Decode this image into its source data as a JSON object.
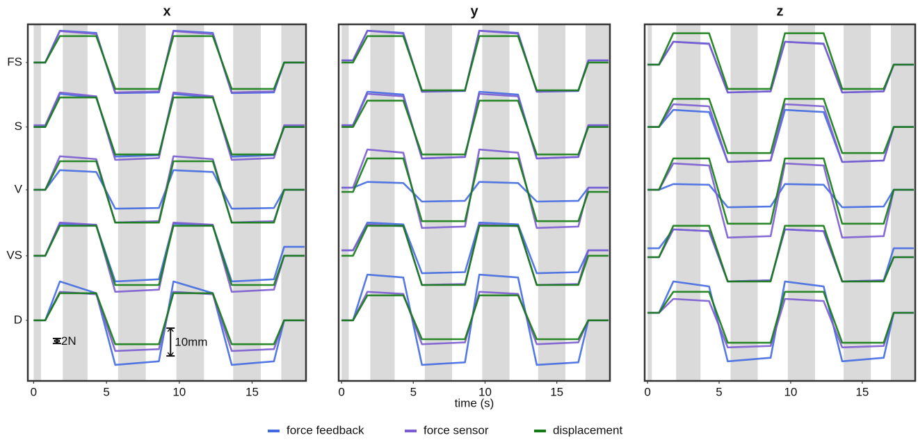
{
  "chart_data": [
    {
      "type": "line",
      "title": "x",
      "x": [
        0,
        0.8,
        1.8,
        4.3,
        5.6,
        8.6,
        9.6,
        12.3,
        13.6,
        16.5,
        17.2,
        18.6
      ],
      "xlim": [
        -0.4,
        18.7
      ],
      "xticks": [
        0,
        5,
        10,
        15
      ],
      "ylim": [
        0,
        100
      ],
      "yticks": [
        {
          "value": 89.3,
          "label": "FS"
        },
        {
          "value": 71.2,
          "label": "S"
        },
        {
          "value": 53.6,
          "label": "V"
        },
        {
          "value": 35.1,
          "label": "VS"
        },
        {
          "value": 17.0,
          "label": "D"
        }
      ],
      "shaded": [
        [
          0,
          0.5
        ],
        [
          2,
          3.7
        ],
        [
          5.8,
          7.7
        ],
        [
          9.8,
          11.7
        ],
        [
          13.7,
          15.6
        ],
        [
          17,
          18.7
        ]
      ],
      "annotations": [
        {
          "text": "2N",
          "x": 1.6,
          "y": [
            10.5,
            11.9
          ]
        },
        {
          "text": "10mm",
          "x": 9.4,
          "y": [
            7.0,
            14.8
          ]
        }
      ],
      "series": [
        {
          "name": "force feedback",
          "color": "#4169e1",
          "values": [
            [
              89.3,
              89.3,
              98.2,
              97.6,
              80.7,
              80.9,
              98.2,
              97.6,
              80.7,
              80.9,
              89.3,
              89.3
            ],
            [
              71.2,
              71.2,
              80.5,
              79.5,
              62.9,
              63.3,
              80.5,
              79.5,
              62.9,
              63.3,
              71.2,
              71.2
            ],
            [
              53.6,
              53.6,
              59.1,
              58.6,
              48.3,
              48.5,
              59.1,
              58.6,
              48.3,
              48.5,
              53.6,
              53.6
            ],
            [
              35.1,
              35.1,
              44.1,
              43.6,
              27.9,
              28.5,
              44.1,
              43.6,
              27.9,
              28.5,
              37.6,
              37.6
            ],
            [
              17.0,
              17.0,
              27.9,
              24.6,
              4.5,
              5.5,
              27.9,
              24.6,
              4.5,
              5.5,
              17.0,
              17.0
            ]
          ]
        },
        {
          "name": "force sensor",
          "color": "#7b5cd0",
          "values": [
            [
              89.3,
              89.3,
              98.1,
              97.3,
              80.9,
              81.2,
              98.1,
              97.3,
              80.9,
              81.2,
              89.3,
              89.3
            ],
            [
              71.7,
              71.7,
              80.9,
              79.8,
              62.0,
              62.5,
              80.9,
              79.8,
              62.0,
              62.5,
              71.7,
              71.7
            ],
            [
              53.6,
              53.6,
              63.0,
              62.2,
              44.4,
              44.8,
              63.0,
              62.2,
              44.4,
              44.8,
              53.6,
              53.6
            ],
            [
              35.1,
              35.1,
              44.4,
              43.8,
              25.0,
              25.6,
              44.4,
              43.8,
              25.0,
              25.6,
              35.1,
              35.1
            ],
            [
              17.0,
              17.0,
              25.0,
              24.3,
              8.4,
              8.9,
              25.0,
              24.3,
              8.4,
              8.9,
              17.0,
              17.0
            ]
          ]
        },
        {
          "name": "displacement",
          "color": "#137a13",
          "values": [
            [
              89.3,
              89.3,
              96.7,
              96.7,
              81.9,
              81.9,
              96.7,
              96.7,
              81.9,
              81.9,
              89.3,
              89.3
            ],
            [
              71.2,
              71.2,
              79.5,
              79.5,
              63.5,
              63.5,
              79.5,
              79.5,
              63.5,
              63.5,
              71.2,
              71.2
            ],
            [
              53.6,
              53.6,
              61.6,
              61.6,
              44.4,
              44.4,
              61.6,
              61.6,
              44.4,
              44.4,
              53.6,
              53.6
            ],
            [
              35.1,
              35.1,
              43.5,
              43.5,
              26.9,
              26.9,
              43.5,
              43.5,
              26.9,
              26.9,
              35.1,
              35.1
            ],
            [
              17.0,
              17.0,
              24.6,
              24.6,
              10.3,
              10.3,
              24.6,
              24.6,
              10.3,
              10.3,
              17.0,
              17.0
            ]
          ]
        }
      ]
    },
    {
      "type": "line",
      "title": "y",
      "xlabel": "time (s)",
      "x": [
        0,
        0.8,
        1.8,
        4.3,
        5.6,
        8.6,
        9.6,
        12.3,
        13.6,
        16.5,
        17.2,
        18.6
      ],
      "xlim": [
        -0.2,
        18.7
      ],
      "xticks": [
        0,
        5,
        10,
        15
      ],
      "ylim": [
        0,
        100
      ],
      "shaded": [
        [
          0,
          0.5
        ],
        [
          2,
          3.7
        ],
        [
          5.8,
          7.7
        ],
        [
          9.8,
          11.7
        ],
        [
          13.7,
          15.6
        ],
        [
          17,
          18.7
        ]
      ],
      "series": [
        {
          "name": "force feedback",
          "color": "#4169e1",
          "values": [
            [
              89.9,
              89.9,
              98.2,
              97.6,
              81.1,
              81.3,
              98.2,
              97.6,
              81.1,
              81.3,
              89.9,
              89.9
            ],
            [
              71.7,
              71.7,
              81.1,
              80.3,
              62.4,
              62.8,
              81.1,
              80.3,
              62.4,
              62.8,
              71.7,
              71.7
            ],
            [
              54.2,
              54.2,
              55.8,
              55.5,
              50.3,
              50.5,
              55.8,
              55.5,
              50.3,
              50.5,
              54.2,
              54.2
            ],
            [
              36.6,
              36.6,
              44.4,
              43.9,
              30.2,
              30.5,
              44.4,
              43.9,
              30.2,
              30.5,
              36.6,
              36.6
            ],
            [
              17.0,
              17.0,
              29.8,
              29.0,
              4.5,
              5.2,
              29.8,
              29.0,
              4.5,
              5.2,
              17.0,
              17.0
            ]
          ]
        },
        {
          "name": "force sensor",
          "color": "#7b5cd0",
          "values": [
            [
              89.9,
              89.9,
              98.2,
              97.4,
              81.1,
              81.4,
              98.2,
              97.4,
              81.1,
              81.4,
              89.9,
              89.9
            ],
            [
              71.7,
              71.7,
              80.5,
              79.8,
              62.4,
              62.8,
              80.5,
              79.8,
              62.4,
              62.8,
              71.7,
              71.7
            ],
            [
              54.2,
              54.2,
              64.9,
              64.0,
              42.9,
              43.3,
              64.9,
              64.0,
              42.9,
              43.3,
              54.2,
              54.2
            ],
            [
              36.6,
              36.6,
              43.9,
              43.4,
              26.9,
              27.2,
              43.9,
              43.4,
              26.9,
              27.2,
              36.6,
              36.6
            ],
            [
              17.0,
              17.0,
              25.0,
              24.4,
              10.3,
              10.8,
              25.0,
              24.4,
              10.3,
              10.8,
              17.0,
              17.0
            ]
          ]
        },
        {
          "name": "displacement",
          "color": "#137a13",
          "values": [
            [
              89.3,
              89.3,
              96.7,
              96.7,
              81.5,
              81.5,
              96.7,
              96.7,
              81.5,
              81.5,
              89.3,
              89.3
            ],
            [
              71.2,
              71.2,
              78.6,
              78.6,
              63.5,
              63.5,
              78.6,
              78.6,
              63.5,
              63.5,
              71.2,
              71.2
            ],
            [
              53.0,
              53.0,
              62.4,
              62.4,
              44.8,
              44.8,
              62.4,
              62.4,
              44.8,
              44.8,
              53.0,
              53.0
            ],
            [
              35.1,
              35.1,
              43.5,
              43.5,
              26.9,
              26.9,
              43.5,
              43.5,
              26.9,
              26.9,
              35.1,
              35.1
            ],
            [
              17.0,
              17.0,
              24.0,
              24.0,
              11.7,
              11.7,
              24.0,
              24.0,
              11.7,
              11.7,
              17.0,
              17.0
            ]
          ]
        }
      ]
    },
    {
      "type": "line",
      "title": "z",
      "x": [
        0,
        0.8,
        1.8,
        4.3,
        5.6,
        8.6,
        9.6,
        12.3,
        13.6,
        16.5,
        17.2,
        18.6
      ],
      "xlim": [
        -0.2,
        18.7
      ],
      "xticks": [
        0,
        5,
        10,
        15
      ],
      "ylim": [
        0,
        100
      ],
      "shaded": [
        [
          0,
          0.3
        ],
        [
          2,
          3.7
        ],
        [
          5.8,
          7.7
        ],
        [
          9.8,
          11.7
        ],
        [
          13.7,
          15.6
        ],
        [
          17,
          18.7
        ]
      ],
      "series": [
        {
          "name": "force feedback",
          "color": "#4169e1",
          "values": [
            [
              88.7,
              88.7,
              95.1,
              94.6,
              80.9,
              81.2,
              95.1,
              94.6,
              80.9,
              81.2,
              88.7,
              88.7
            ],
            [
              71.2,
              71.2,
              76.0,
              75.4,
              61.4,
              61.8,
              76.0,
              75.4,
              61.4,
              61.8,
              71.2,
              71.2
            ],
            [
              53.6,
              53.6,
              55.2,
              55.0,
              48.7,
              48.9,
              55.2,
              55.0,
              48.7,
              48.9,
              53.6,
              53.6
            ],
            [
              37.2,
              37.2,
              42.5,
              42.0,
              27.9,
              28.2,
              42.5,
              42.0,
              27.9,
              28.2,
              37.2,
              37.2
            ],
            [
              19.1,
              19.1,
              27.9,
              26.5,
              5.5,
              6.5,
              27.9,
              26.5,
              5.5,
              6.5,
              19.1,
              19.1
            ]
          ]
        },
        {
          "name": "force sensor",
          "color": "#7b5cd0",
          "values": [
            [
              88.7,
              88.7,
              95.1,
              94.5,
              80.9,
              81.2,
              95.1,
              94.5,
              80.9,
              81.2,
              88.7,
              88.7
            ],
            [
              71.2,
              71.2,
              77.6,
              77.0,
              61.4,
              61.8,
              77.6,
              77.0,
              61.4,
              61.8,
              71.2,
              71.2
            ],
            [
              53.6,
              53.6,
              61.0,
              60.4,
              40.2,
              40.6,
              61.0,
              60.4,
              40.2,
              40.6,
              53.6,
              53.6
            ],
            [
              34.7,
              34.7,
              42.5,
              42.0,
              27.9,
              28.2,
              42.5,
              42.0,
              27.9,
              28.2,
              34.7,
              34.7
            ],
            [
              19.1,
              19.1,
              23.0,
              22.4,
              9.4,
              9.8,
              23.0,
              22.4,
              9.4,
              9.8,
              19.1,
              19.1
            ]
          ]
        },
        {
          "name": "displacement",
          "color": "#137a13",
          "values": [
            [
              88.7,
              88.7,
              97.5,
              97.5,
              81.9,
              81.9,
              97.5,
              97.5,
              81.9,
              81.9,
              88.7,
              88.7
            ],
            [
              71.2,
              71.2,
              79.1,
              79.1,
              63.9,
              63.9,
              79.1,
              79.1,
              63.9,
              63.9,
              71.2,
              71.2
            ],
            [
              53.6,
              53.6,
              62.4,
              62.4,
              44.1,
              44.1,
              62.4,
              62.4,
              44.1,
              44.1,
              53.6,
              53.6
            ],
            [
              34.7,
              34.7,
              43.5,
              43.5,
              27.9,
              27.9,
              43.5,
              43.5,
              27.9,
              27.9,
              34.7,
              34.7
            ],
            [
              19.1,
              19.1,
              25.0,
              25.0,
              10.7,
              10.7,
              25.0,
              25.0,
              10.7,
              10.7,
              19.1,
              19.1
            ]
          ]
        }
      ]
    }
  ]
}
